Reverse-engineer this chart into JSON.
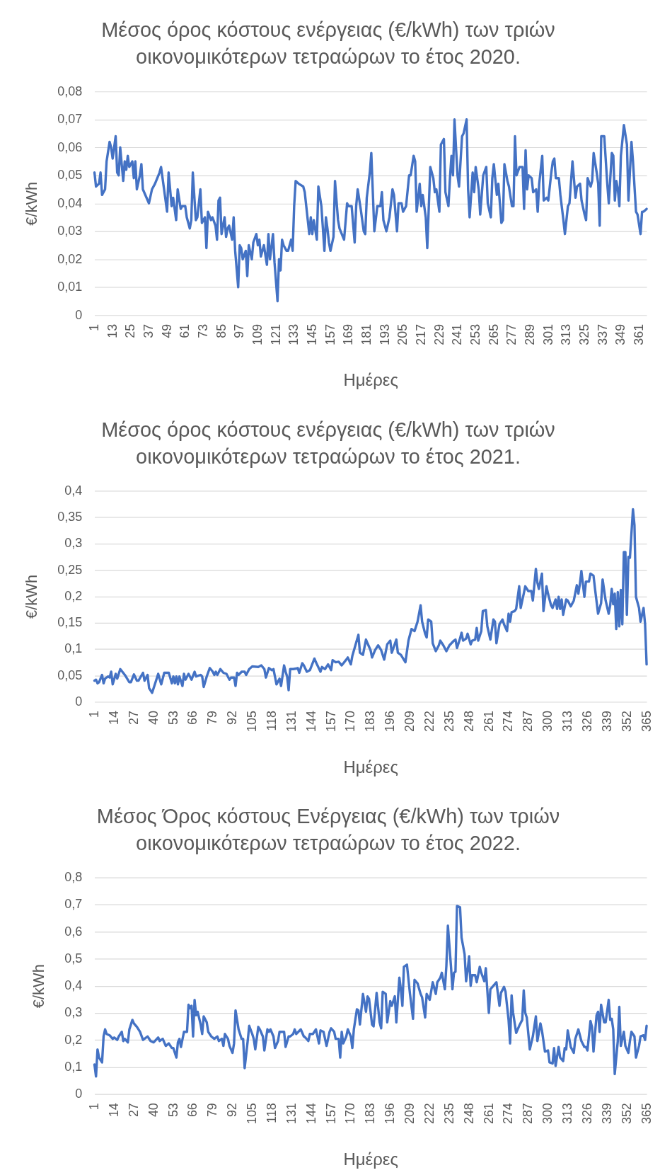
{
  "chart_data": [
    {
      "type": "line",
      "title": "Μέσος όρος κόστους ενέργειας (€/kWh) των τριών\nοικονομικότερων τετραώρων το έτος 2020.",
      "xlabel": "Ημέρες",
      "ylabel": "€/kWh",
      "grid": "y",
      "x": [
        1,
        2,
        4,
        5,
        6,
        8,
        9,
        11,
        12,
        13,
        15,
        16,
        17,
        18,
        20,
        21,
        22,
        23,
        24,
        26,
        27,
        28,
        29,
        31,
        32,
        33,
        37,
        39,
        41,
        44,
        45,
        49,
        50,
        52,
        53,
        55,
        56,
        58,
        59,
        61,
        62,
        64,
        65,
        66,
        68,
        69,
        71,
        72,
        74,
        75,
        76,
        78,
        79,
        81,
        82,
        83,
        84,
        85,
        87,
        88,
        89,
        90,
        92,
        93,
        94,
        96,
        97,
        98,
        99,
        101,
        102,
        103,
        105,
        106,
        108,
        109,
        110,
        111,
        113,
        115,
        116,
        117,
        119,
        120,
        122,
        123,
        124,
        125,
        126,
        128,
        129,
        131,
        132,
        133,
        134,
        136,
        139,
        140,
        143,
        144,
        145,
        146,
        148,
        149,
        151,
        153,
        154,
        155,
        156,
        157,
        159,
        160,
        162,
        163,
        166,
        168,
        169,
        171,
        173,
        174,
        175,
        177,
        179,
        180,
        181,
        183,
        184,
        186,
        188,
        190,
        191,
        192,
        194,
        196,
        198,
        199,
        201,
        202,
        204,
        205,
        207,
        209,
        210,
        212,
        213,
        214,
        216,
        217,
        218,
        220,
        221,
        223,
        225,
        226,
        227,
        229,
        230,
        232,
        233,
        235,
        236,
        237,
        238,
        239,
        241,
        242,
        244,
        245,
        247,
        248,
        249,
        251,
        252,
        253,
        255,
        256,
        258,
        260,
        261,
        263,
        264,
        265,
        267,
        268,
        270,
        271,
        272,
        274,
        275,
        277,
        278,
        279,
        280,
        282,
        284,
        285,
        286,
        287,
        288,
        290,
        291,
        293,
        294,
        295,
        297,
        298,
        300,
        301,
        303,
        304,
        305,
        306,
        308,
        309,
        311,
        312,
        314,
        315,
        317,
        319,
        320,
        322,
        323,
        325,
        326,
        327,
        329,
        330,
        331,
        333,
        334,
        335,
        336,
        338,
        340,
        341,
        343,
        344,
        345,
        346,
        347,
        348,
        349,
        351,
        353,
        354,
        356,
        357,
        359,
        360,
        362,
        363,
        364,
        366
      ],
      "series": [
        {
          "color": "#4472c4",
          "values": [
            0.051,
            0.046,
            0.047,
            0.051,
            0.043,
            0.045,
            0.055,
            0.062,
            0.06,
            0.056,
            0.064,
            0.051,
            0.05,
            0.06,
            0.048,
            0.055,
            0.052,
            0.057,
            0.053,
            0.055,
            0.049,
            0.055,
            0.045,
            0.05,
            0.054,
            0.045,
            0.04,
            0.045,
            0.047,
            0.051,
            0.053,
            0.037,
            0.051,
            0.039,
            0.042,
            0.034,
            0.045,
            0.038,
            0.039,
            0.039,
            0.035,
            0.031,
            0.034,
            0.051,
            0.034,
            0.035,
            0.045,
            0.033,
            0.035,
            0.024,
            0.037,
            0.034,
            0.035,
            0.032,
            0.027,
            0.041,
            0.042,
            0.029,
            0.035,
            0.028,
            0.031,
            0.032,
            0.027,
            0.035,
            0.023,
            0.01,
            0.025,
            0.024,
            0.02,
            0.023,
            0.014,
            0.025,
            0.02,
            0.026,
            0.029,
            0.025,
            0.027,
            0.021,
            0.025,
            0.018,
            0.029,
            0.02,
            0.029,
            0.019,
            0.005,
            0.02,
            0.016,
            0.027,
            0.025,
            0.023,
            0.023,
            0.027,
            0.023,
            0.039,
            0.048,
            0.047,
            0.046,
            0.044,
            0.029,
            0.035,
            0.029,
            0.034,
            0.027,
            0.046,
            0.039,
            0.023,
            0.035,
            0.031,
            0.026,
            0.023,
            0.028,
            0.048,
            0.034,
            0.031,
            0.027,
            0.04,
            0.039,
            0.039,
            0.026,
            0.039,
            0.045,
            0.038,
            0.03,
            0.029,
            0.042,
            0.051,
            0.058,
            0.03,
            0.039,
            0.039,
            0.044,
            0.034,
            0.03,
            0.035,
            0.045,
            0.043,
            0.03,
            0.04,
            0.04,
            0.037,
            0.039,
            0.05,
            0.05,
            0.057,
            0.055,
            0.037,
            0.047,
            0.039,
            0.043,
            0.035,
            0.024,
            0.053,
            0.049,
            0.044,
            0.045,
            0.037,
            0.061,
            0.063,
            0.044,
            0.039,
            0.049,
            0.057,
            0.05,
            0.07,
            0.05,
            0.046,
            0.064,
            0.065,
            0.07,
            0.045,
            0.035,
            0.051,
            0.044,
            0.053,
            0.045,
            0.036,
            0.05,
            0.053,
            0.04,
            0.035,
            0.049,
            0.054,
            0.043,
            0.047,
            0.033,
            0.034,
            0.054,
            0.048,
            0.046,
            0.039,
            0.039,
            0.064,
            0.05,
            0.053,
            0.053,
            0.038,
            0.059,
            0.045,
            0.05,
            0.049,
            0.044,
            0.045,
            0.037,
            0.047,
            0.057,
            0.041,
            0.042,
            0.041,
            0.051,
            0.055,
            0.056,
            0.049,
            0.049,
            0.043,
            0.034,
            0.029,
            0.039,
            0.04,
            0.055,
            0.042,
            0.046,
            0.047,
            0.041,
            0.036,
            0.034,
            0.049,
            0.046,
            0.048,
            0.058,
            0.051,
            0.047,
            0.032,
            0.064,
            0.064,
            0.047,
            0.04,
            0.058,
            0.057,
            0.041,
            0.048,
            0.045,
            0.039,
            0.057,
            0.068,
            0.061,
            0.041,
            0.062,
            0.055,
            0.037,
            0.036,
            0.029,
            0.037,
            0.037,
            0.038
          ]
        }
      ],
      "xlim": [
        1,
        366
      ],
      "xticks": [
        1,
        13,
        25,
        37,
        49,
        61,
        73,
        85,
        97,
        109,
        121,
        133,
        145,
        157,
        169,
        181,
        193,
        205,
        217,
        229,
        241,
        253,
        265,
        277,
        289,
        301,
        313,
        325,
        337,
        349,
        361
      ],
      "ylim": [
        0,
        0.08
      ],
      "yticks": [
        {
          "value": 0,
          "label": "0"
        },
        {
          "value": 0.01,
          "label": "0,01"
        },
        {
          "value": 0.02,
          "label": "0,02"
        },
        {
          "value": 0.03,
          "label": "0,03"
        },
        {
          "value": 0.04,
          "label": "0,04"
        },
        {
          "value": 0.05,
          "label": "0,05"
        },
        {
          "value": 0.06,
          "label": "0,06"
        },
        {
          "value": 0.07,
          "label": "0,07"
        },
        {
          "value": 0.08,
          "label": "0,08"
        }
      ]
    },
    {
      "type": "line",
      "title": "Μέσος όρος κόστους ενέργειας (€/kWh) των τριών\nοικονομικότερων τετραώρων το έτος 2021.",
      "xlabel": "Ημέρες",
      "ylabel": "€/kWh",
      "grid": "y",
      "x": [
        1,
        2,
        3,
        4,
        6,
        7,
        8,
        10,
        11,
        12,
        13,
        15,
        16,
        18,
        21,
        24,
        25,
        27,
        29,
        30,
        33,
        34,
        36,
        37,
        39,
        41,
        43,
        45,
        47,
        48,
        50,
        52,
        53,
        54,
        55,
        56,
        57,
        59,
        60,
        61,
        63,
        65,
        67,
        68,
        71,
        72,
        73,
        75,
        77,
        79,
        80,
        81,
        82,
        84,
        86,
        88,
        90,
        91,
        93,
        94,
        95,
        96,
        98,
        100,
        101,
        103,
        105,
        109,
        111,
        113,
        114,
        116,
        118,
        119,
        121,
        123,
        124,
        126,
        127,
        128,
        129,
        130,
        132,
        134,
        135,
        136,
        138,
        139,
        141,
        143,
        146,
        147,
        150,
        151,
        153,
        155,
        157,
        158,
        160,
        162,
        164,
        167,
        168,
        170,
        171,
        173,
        175,
        176,
        178,
        180,
        181,
        183,
        184,
        186,
        188,
        190,
        192,
        194,
        196,
        197,
        200,
        201,
        203,
        206,
        208,
        210,
        212,
        214,
        216,
        217,
        219,
        220,
        221,
        223,
        224,
        226,
        228,
        229,
        231,
        233,
        235,
        238,
        239,
        240,
        242,
        243,
        244,
        246,
        247,
        249,
        250,
        252,
        253,
        254,
        256,
        257,
        259,
        260,
        262,
        264,
        265,
        266,
        268,
        270,
        271,
        273,
        274,
        275,
        276,
        278,
        279,
        281,
        282,
        284,
        285,
        287,
        289,
        290,
        292,
        293,
        294,
        296,
        297,
        299,
        300,
        302,
        303,
        305,
        306,
        307,
        308,
        309,
        310,
        312,
        313,
        315,
        317,
        319,
        320,
        321,
        322,
        324,
        325,
        327,
        328,
        330,
        331,
        333,
        335,
        336,
        338,
        340,
        341,
        342,
        343,
        344,
        345,
        346,
        347,
        348,
        349,
        350,
        351,
        352,
        353,
        354,
        356,
        357,
        358,
        360,
        361,
        363,
        364,
        365
      ],
      "series": [
        {
          "color": "#4472c4",
          "values": [
            0.04,
            0.042,
            0.035,
            0.037,
            0.051,
            0.035,
            0.044,
            0.048,
            0.046,
            0.057,
            0.033,
            0.053,
            0.044,
            0.062,
            0.051,
            0.037,
            0.037,
            0.052,
            0.04,
            0.04,
            0.055,
            0.04,
            0.051,
            0.026,
            0.017,
            0.035,
            0.053,
            0.033,
            0.055,
            0.055,
            0.055,
            0.035,
            0.048,
            0.035,
            0.048,
            0.033,
            0.048,
            0.03,
            0.053,
            0.042,
            0.053,
            0.042,
            0.057,
            0.048,
            0.051,
            0.048,
            0.028,
            0.048,
            0.064,
            0.057,
            0.051,
            0.057,
            0.051,
            0.062,
            0.055,
            0.053,
            0.042,
            0.046,
            0.046,
            0.03,
            0.055,
            0.051,
            0.057,
            0.057,
            0.051,
            0.062,
            0.067,
            0.066,
            0.069,
            0.062,
            0.046,
            0.064,
            0.06,
            0.062,
            0.033,
            0.044,
            0.03,
            0.069,
            0.057,
            0.048,
            0.022,
            0.062,
            0.062,
            0.063,
            0.064,
            0.055,
            0.073,
            0.069,
            0.057,
            0.06,
            0.082,
            0.075,
            0.057,
            0.066,
            0.062,
            0.071,
            0.06,
            0.079,
            0.075,
            0.076,
            0.069,
            0.08,
            0.084,
            0.071,
            0.087,
            0.107,
            0.127,
            0.093,
            0.089,
            0.118,
            0.111,
            0.098,
            0.084,
            0.098,
            0.107,
            0.098,
            0.08,
            0.109,
            0.116,
            0.093,
            0.118,
            0.093,
            0.089,
            0.075,
            0.116,
            0.138,
            0.134,
            0.152,
            0.183,
            0.152,
            0.129,
            0.122,
            0.156,
            0.152,
            0.111,
            0.096,
            0.107,
            0.116,
            0.107,
            0.096,
            0.107,
            0.116,
            0.118,
            0.102,
            0.12,
            0.131,
            0.116,
            0.12,
            0.129,
            0.109,
            0.116,
            0.118,
            0.14,
            0.116,
            0.134,
            0.172,
            0.174,
            0.143,
            0.118,
            0.156,
            0.152,
            0.111,
            0.147,
            0.156,
            0.147,
            0.134,
            0.167,
            0.152,
            0.17,
            0.172,
            0.176,
            0.219,
            0.178,
            0.205,
            0.219,
            0.21,
            0.21,
            0.192,
            0.252,
            0.226,
            0.214,
            0.243,
            0.172,
            0.219,
            0.205,
            0.183,
            0.178,
            0.194,
            0.176,
            0.199,
            0.176,
            0.194,
            0.165,
            0.194,
            0.192,
            0.181,
            0.192,
            0.221,
            0.205,
            0.223,
            0.248,
            0.199,
            0.228,
            0.228,
            0.243,
            0.239,
            0.214,
            0.167,
            0.187,
            0.232,
            0.192,
            0.167,
            0.183,
            0.214,
            0.185,
            0.205,
            0.138,
            0.208,
            0.143,
            0.212,
            0.147,
            0.284,
            0.284,
            0.165,
            0.275,
            0.273,
            0.365,
            0.335,
            0.199,
            0.178,
            0.152,
            0.178,
            0.147,
            0.071
          ]
        }
      ],
      "xlim": [
        1,
        365
      ],
      "xticks": [
        1,
        14,
        27,
        40,
        53,
        66,
        79,
        92,
        105,
        118,
        131,
        144,
        157,
        170,
        183,
        196,
        209,
        222,
        235,
        248,
        261,
        274,
        287,
        300,
        313,
        326,
        339,
        352,
        365
      ],
      "ylim": [
        0,
        0.4
      ],
      "yticks": [
        {
          "value": 0,
          "label": "0"
        },
        {
          "value": 0.05,
          "label": "0,05"
        },
        {
          "value": 0.1,
          "label": "0,1"
        },
        {
          "value": 0.15,
          "label": "0,15"
        },
        {
          "value": 0.2,
          "label": "0,2"
        },
        {
          "value": 0.25,
          "label": "0,25"
        },
        {
          "value": 0.3,
          "label": "0,3"
        },
        {
          "value": 0.35,
          "label": "0,35"
        },
        {
          "value": 0.4,
          "label": "0,4"
        }
      ]
    },
    {
      "type": "line",
      "title": "Μέσος Όρος κόστους Ενέργειας (€/kWh) των τριών\nοικονομικότερων τετραώρων το έτος 2022.",
      "xlabel": "Ημέρες",
      "ylabel": "€/kWh",
      "grid": "y",
      "x": [
        1,
        2,
        3,
        4,
        5,
        6,
        7,
        8,
        9,
        11,
        13,
        14,
        16,
        17,
        19,
        20,
        21,
        23,
        24,
        26,
        27,
        29,
        31,
        33,
        36,
        38,
        40,
        43,
        44,
        46,
        48,
        50,
        52,
        53,
        55,
        56,
        57,
        58,
        60,
        62,
        63,
        64,
        65,
        66,
        67,
        68,
        69,
        71,
        72,
        73,
        75,
        76,
        78,
        80,
        82,
        83,
        85,
        86,
        87,
        89,
        90,
        92,
        93,
        94,
        95,
        96,
        98,
        99,
        100,
        102,
        103,
        105,
        106,
        107,
        109,
        110,
        112,
        113,
        115,
        116,
        117,
        119,
        120,
        122,
        123,
        126,
        127,
        129,
        130,
        132,
        133,
        134,
        137,
        139,
        140,
        142,
        143,
        145,
        147,
        149,
        150,
        152,
        154,
        156,
        157,
        159,
        160,
        162,
        163,
        164,
        165,
        167,
        168,
        170,
        171,
        172,
        174,
        175,
        176,
        178,
        180,
        181,
        182,
        184,
        185,
        187,
        189,
        190,
        191,
        193,
        194,
        196,
        197,
        199,
        200,
        202,
        203,
        204,
        205,
        207,
        209,
        211,
        212,
        214,
        216,
        217,
        219,
        220,
        222,
        224,
        226,
        227,
        229,
        230,
        232,
        233,
        234,
        236,
        237,
        238,
        239,
        240,
        242,
        243,
        245,
        246,
        247,
        248,
        249,
        250,
        252,
        253,
        255,
        256,
        258,
        259,
        261,
        262,
        264,
        266,
        268,
        269,
        271,
        272,
        274,
        275,
        276,
        277,
        279,
        281,
        283,
        284,
        285,
        286,
        288,
        290,
        292,
        293,
        295,
        296,
        298,
        300,
        301,
        303,
        304,
        305,
        307,
        308,
        310,
        311,
        312,
        313,
        315,
        317,
        318,
        320,
        322,
        324,
        325,
        326,
        328,
        329,
        330,
        332,
        333,
        334,
        335,
        337,
        338,
        340,
        341,
        342,
        343,
        344,
        346,
        347,
        348,
        350,
        351,
        353,
        354,
        355,
        357,
        358,
        360,
        361,
        363,
        364,
        365
      ],
      "series": [
        {
          "color": "#4472c4",
          "values": [
            0.109,
            0.065,
            0.165,
            0.135,
            0.126,
            0.117,
            0.213,
            0.239,
            0.222,
            0.217,
            0.204,
            0.209,
            0.2,
            0.213,
            0.23,
            0.196,
            0.204,
            0.191,
            0.239,
            0.274,
            0.261,
            0.248,
            0.23,
            0.2,
            0.213,
            0.196,
            0.191,
            0.209,
            0.196,
            0.204,
            0.178,
            0.187,
            0.17,
            0.17,
            0.135,
            0.191,
            0.204,
            0.174,
            0.23,
            0.23,
            0.33,
            0.317,
            0.326,
            0.213,
            0.348,
            0.291,
            0.304,
            0.257,
            0.222,
            0.287,
            0.265,
            0.23,
            0.213,
            0.204,
            0.213,
            0.196,
            0.204,
            0.178,
            0.222,
            0.204,
            0.178,
            0.152,
            0.187,
            0.309,
            0.274,
            0.239,
            0.204,
            0.204,
            0.096,
            0.196,
            0.252,
            0.222,
            0.204,
            0.165,
            0.248,
            0.239,
            0.213,
            0.161,
            0.239,
            0.23,
            0.239,
            0.213,
            0.17,
            0.196,
            0.23,
            0.23,
            0.174,
            0.213,
            0.213,
            0.222,
            0.239,
            0.222,
            0.239,
            0.213,
            0.209,
            0.196,
            0.222,
            0.222,
            0.239,
            0.187,
            0.235,
            0.23,
            0.178,
            0.23,
            0.243,
            0.23,
            0.204,
            0.204,
            0.135,
            0.23,
            0.187,
            0.213,
            0.239,
            0.213,
            0.17,
            0.239,
            0.313,
            0.309,
            0.257,
            0.37,
            0.304,
            0.361,
            0.352,
            0.257,
            0.25,
            0.374,
            0.265,
            0.243,
            0.378,
            0.37,
            0.265,
            0.343,
            0.326,
            0.361,
            0.265,
            0.43,
            0.387,
            0.326,
            0.47,
            0.478,
            0.37,
            0.278,
            0.422,
            0.409,
            0.37,
            0.357,
            0.283,
            0.37,
            0.348,
            0.413,
            0.37,
            0.413,
            0.43,
            0.448,
            0.387,
            0.474,
            0.622,
            0.474,
            0.387,
            0.448,
            0.452,
            0.695,
            0.69,
            0.578,
            0.517,
            0.417,
            0.457,
            0.509,
            0.4,
            0.439,
            0.439,
            0.413,
            0.47,
            0.448,
            0.417,
            0.465,
            0.3,
            0.387,
            0.4,
            0.413,
            0.326,
            0.374,
            0.396,
            0.378,
            0.274,
            0.187,
            0.365,
            0.3,
            0.226,
            0.252,
            0.274,
            0.383,
            0.3,
            0.283,
            0.165,
            0.213,
            0.287,
            0.196,
            0.261,
            0.235,
            0.157,
            0.161,
            0.117,
            0.113,
            0.17,
            0.104,
            0.174,
            0.135,
            0.122,
            0.17,
            0.165,
            0.235,
            0.174,
            0.152,
            0.204,
            0.239,
            0.196,
            0.174,
            0.174,
            0.161,
            0.27,
            0.248,
            0.157,
            0.291,
            0.304,
            0.23,
            0.33,
            0.265,
            0.265,
            0.348,
            0.274,
            0.278,
            0.239,
            0.074,
            0.196,
            0.322,
            0.178,
            0.23,
            0.178,
            0.152,
            0.196,
            0.23,
            0.213,
            0.135,
            0.178,
            0.213,
            0.217,
            0.2,
            0.252
          ]
        }
      ],
      "xlim": [
        1,
        365
      ],
      "xticks": [
        1,
        14,
        27,
        40,
        53,
        66,
        79,
        92,
        105,
        118,
        131,
        144,
        157,
        170,
        183,
        196,
        209,
        222,
        235,
        248,
        261,
        274,
        287,
        300,
        313,
        326,
        339,
        352,
        365
      ],
      "ylim": [
        0,
        0.8
      ],
      "yticks": [
        {
          "value": 0,
          "label": "0"
        },
        {
          "value": 0.1,
          "label": "0,1"
        },
        {
          "value": 0.2,
          "label": "0,2"
        },
        {
          "value": 0.3,
          "label": "0,3"
        },
        {
          "value": 0.4,
          "label": "0,4"
        },
        {
          "value": 0.5,
          "label": "0,5"
        },
        {
          "value": 0.6,
          "label": "0,6"
        },
        {
          "value": 0.7,
          "label": "0,7"
        },
        {
          "value": 0.8,
          "label": "0,8"
        }
      ]
    }
  ]
}
